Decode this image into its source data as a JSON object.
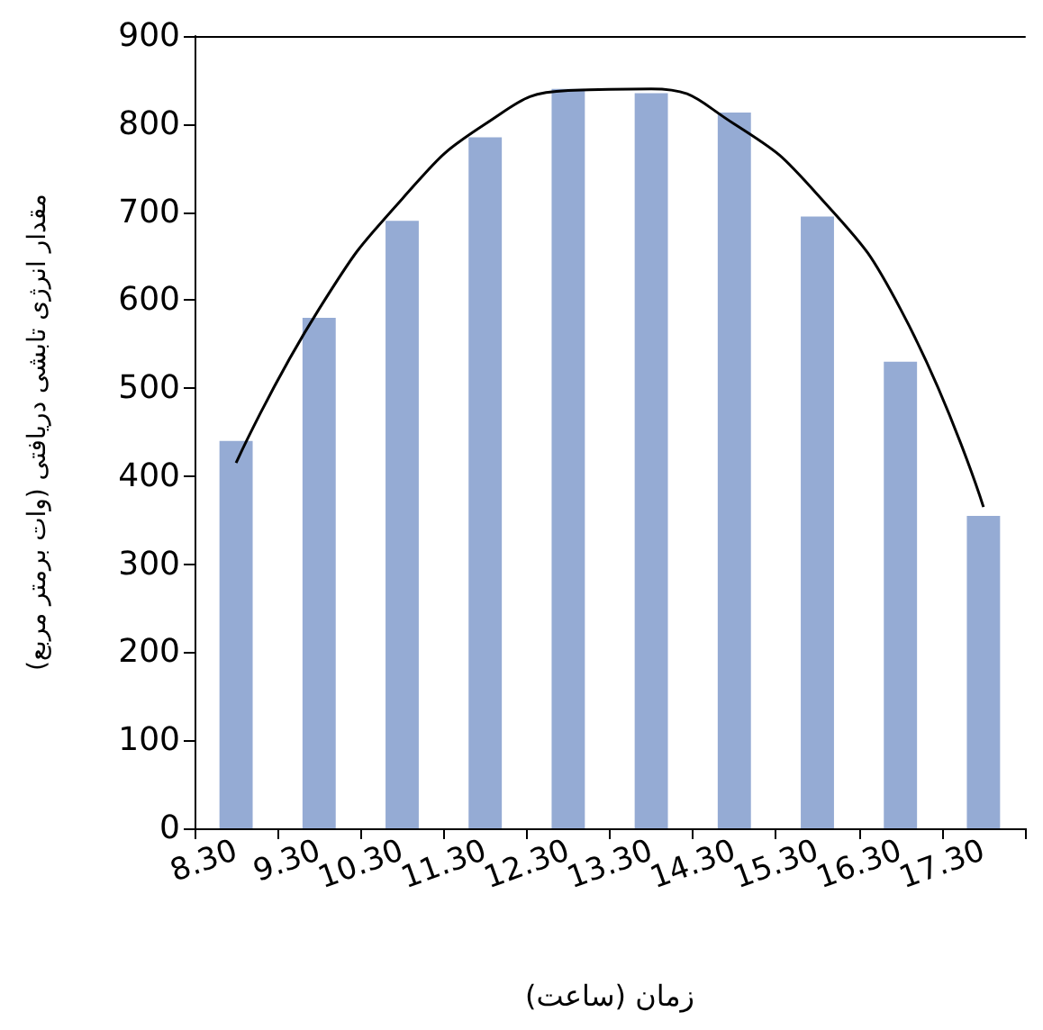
{
  "chart_data": {
    "type": "bar",
    "xlabel": "زمان (ساعت)",
    "ylabel": "مقدار انرژی تابشی دریافتی (وات برمتر مربع)",
    "categories": [
      "8.30",
      "9.30",
      "10.30",
      "11.30",
      "12.30",
      "13.30",
      "14.30",
      "15.30",
      "16.30",
      "17.30"
    ],
    "series": [
      {
        "color": "#95abd4",
        "values": [
          440,
          580,
          690,
          785,
          840,
          835,
          813,
          695,
          530,
          355
        ]
      },
      {
        "type": "line",
        "color": "#000000",
        "values": [
          415,
          590,
          715,
          800,
          838,
          840,
          800,
          720,
          590,
          365
        ]
      }
    ],
    "ylim": [
      0,
      900
    ],
    "yticks": [
      0,
      100,
      200,
      300,
      400,
      500,
      600,
      700,
      800,
      900
    ],
    "grid": false,
    "marker": "none"
  }
}
